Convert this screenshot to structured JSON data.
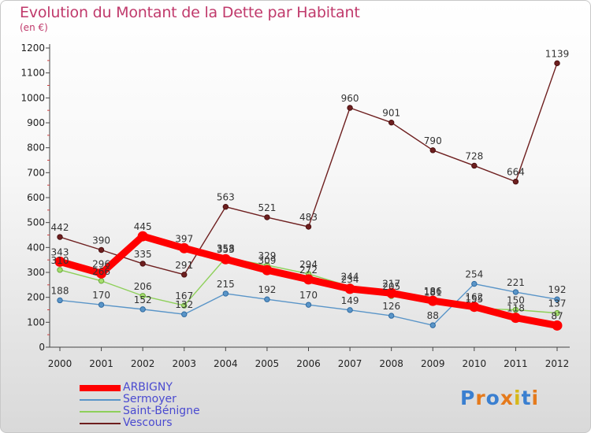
{
  "header": {
    "title": "Evolution du Montant de la Dette par Habitant",
    "subtitle": "(en €)"
  },
  "logo": {
    "text": "Proxiti"
  },
  "chart_data": {
    "type": "line",
    "x": [
      "2000",
      "2001",
      "2002",
      "2003",
      "2004",
      "2005",
      "2006",
      "2007",
      "2008",
      "2009",
      "2010",
      "2011",
      "2012"
    ],
    "ylim": [
      0,
      1200
    ],
    "yticks": [
      0,
      100,
      200,
      300,
      400,
      500,
      600,
      700,
      800,
      900,
      1000,
      1100,
      1200
    ],
    "grid": false,
    "legend_position": "bottom-left",
    "series": [
      {
        "name": "Vescours",
        "color": "#6e1f1f",
        "values": [
          442,
          390,
          335,
          291,
          563,
          521,
          483,
          960,
          901,
          790,
          728,
          664,
          1139
        ]
      },
      {
        "name": "Sermoyer",
        "color": "#5a95c8",
        "values": [
          188,
          170,
          152,
          132,
          215,
          192,
          170,
          149,
          126,
          88,
          254,
          221,
          192
        ]
      },
      {
        "name": "Saint-Bénigne",
        "color": "#8ed05a",
        "values": [
          310,
          266,
          206,
          167,
          358,
          329,
          294,
          244,
          205,
          181,
          155,
          150,
          137
        ]
      },
      {
        "name": "ARBIGNY",
        "color": "#ff0000",
        "values": [
          343,
          296,
          445,
          397,
          353,
          309,
          272,
          234,
          217,
          186,
          162,
          118,
          87
        ]
      }
    ]
  }
}
